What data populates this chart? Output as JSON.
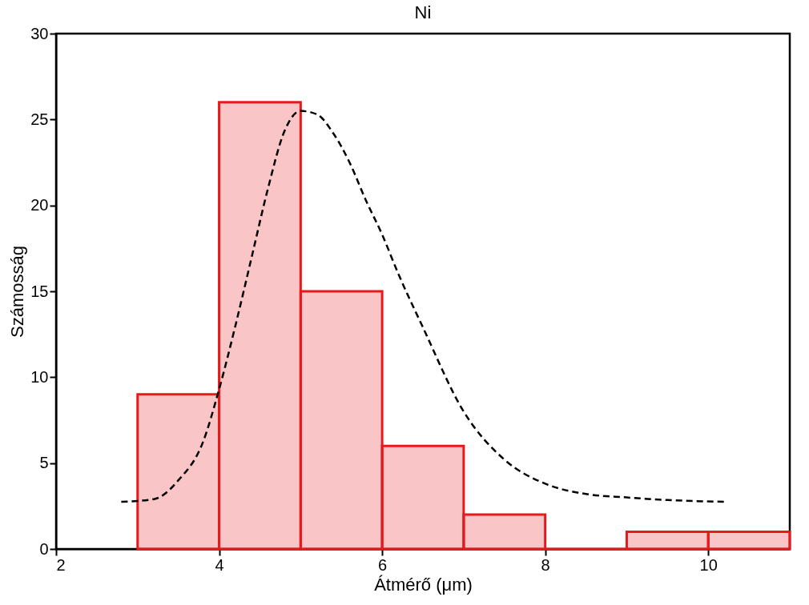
{
  "chart_data": {
    "type": "histogram",
    "title": "Ni",
    "xlabel": "Átmérő (μm)",
    "ylabel": "Számosság",
    "bins": [
      3,
      4,
      5,
      6,
      7,
      8,
      9,
      10,
      11
    ],
    "values": [
      9,
      26,
      15,
      6,
      2,
      0,
      1,
      1
    ],
    "color": "#e8191a",
    "xlim": [
      2,
      11
    ],
    "xticks": [
      2,
      4,
      6,
      8,
      10
    ],
    "ylim": [
      0,
      30
    ],
    "yticks": [
      0,
      5,
      10,
      15,
      20,
      25,
      30
    ],
    "grid": false,
    "series": [
      {
        "type": "line",
        "color": "#000000",
        "line_style": "dashed",
        "marker": "none",
        "x": [
          2.8,
          3.2,
          3.5,
          3.8,
          4.0,
          4.2,
          4.4,
          4.6,
          4.8,
          5.0,
          5.2,
          5.4,
          5.6,
          5.8,
          6.0,
          6.2,
          6.5,
          7.0,
          7.5,
          8.0,
          8.5,
          9.0,
          9.5,
          10.2
        ],
        "values": [
          2.75,
          2.9,
          4.0,
          6.2,
          9.3,
          13,
          17,
          21,
          24.3,
          25.5,
          25.3,
          24.2,
          22.5,
          20.3,
          18.3,
          16,
          12.9,
          8,
          5.2,
          3.8,
          3.2,
          3.0,
          2.85,
          2.75
        ]
      }
    ]
  }
}
